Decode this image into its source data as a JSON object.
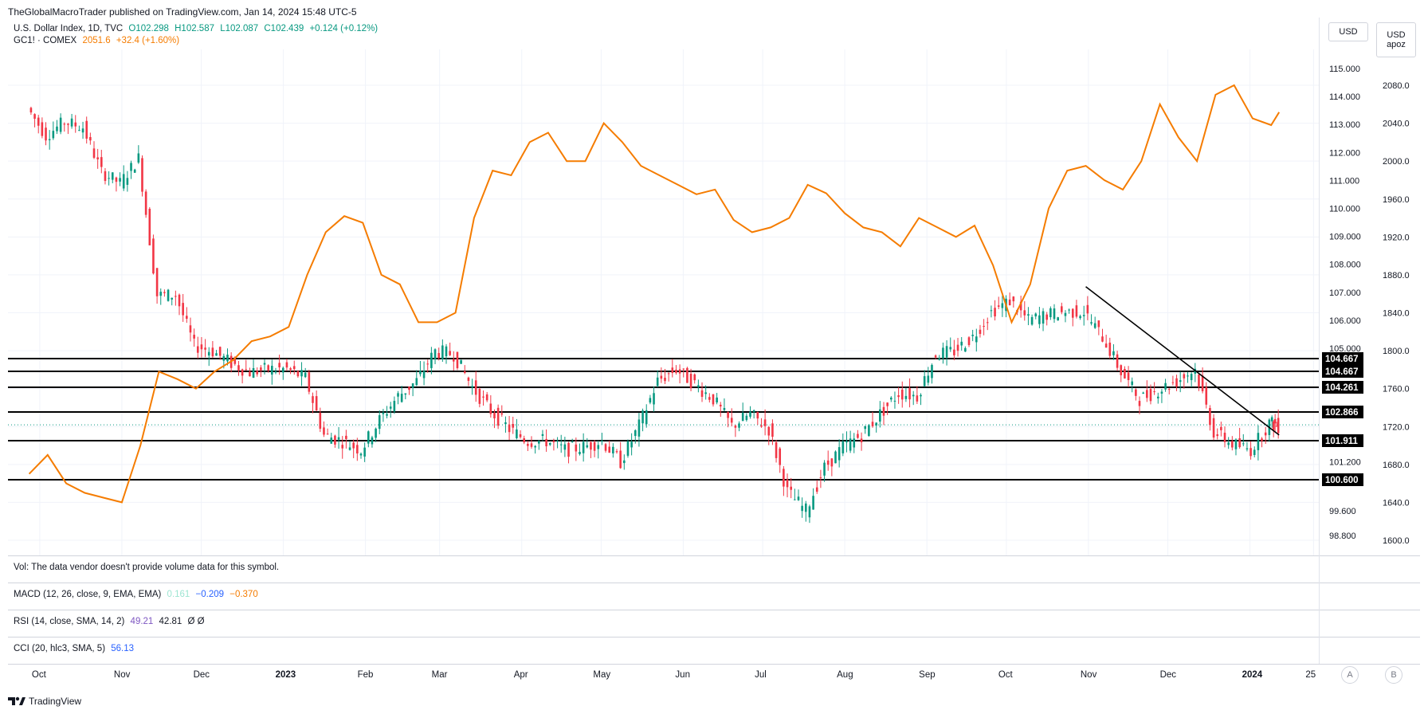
{
  "header": {
    "publisher_line": "TheGlobalMacroTrader published on TradingView.com, Jan 14, 2024 15:48 UTC-5"
  },
  "legend": {
    "symbol1": {
      "name": "U.S. Dollar Index, 1D, TVC",
      "o": "O102.298",
      "h": "H102.587",
      "l": "L102.087",
      "c": "C102.439",
      "chg": "+0.124 (+0.12%)",
      "color": "#089981"
    },
    "symbol2": {
      "name": "GC1! · COMEX",
      "price": "2051.6",
      "chg": "+32.4 (+1.60%)",
      "color": "#f57c00"
    }
  },
  "unit_buttons": {
    "left": "USD",
    "right_top": "USD",
    "right_bottom": "apoz"
  },
  "panes": {
    "volume": "Vol: The data vendor doesn't provide volume data for this symbol.",
    "macd": {
      "label": "MACD (12, 26, close, 9, EMA, EMA)",
      "v1": "0.161",
      "v2": "−0.209",
      "v3": "−0.370"
    },
    "rsi": {
      "label": "RSI (14, close, SMA, 14, 2)",
      "v1": "49.21",
      "v2": "42.81",
      "v3": "Ø Ø"
    },
    "cci": {
      "label": "CCI (20, hlc3, SMA, 5)",
      "v1": "56.13"
    }
  },
  "time_axis": [
    "Oct",
    "Nov",
    "Dec",
    "2023",
    "Feb",
    "Mar",
    "Apr",
    "May",
    "Jun",
    "Jul",
    "Aug",
    "Sep",
    "Oct",
    "Nov",
    "Dec",
    "2024",
    "25"
  ],
  "scale_buttons": {
    "a": "A",
    "b": "B"
  },
  "footer": {
    "brand": "TradingView"
  },
  "chart_data": {
    "type": "line",
    "colors": {
      "up": "#089981",
      "down": "#f23645",
      "gold": "#f57c00",
      "levels": "#000000"
    },
    "dxy_axis_ticks": [
      "115.000",
      "114.000",
      "113.000",
      "112.000",
      "111.000",
      "110.000",
      "109.000",
      "108.000",
      "107.000",
      "106.000",
      "105.000",
      "101.200",
      "99.600",
      "98.800"
    ],
    "gold_axis_ticks": [
      "2080.0",
      "2040.0",
      "2000.0",
      "1960.0",
      "1920.0",
      "1880.0",
      "1840.0",
      "1800.0",
      "1760.0",
      "1720.0",
      "1680.0",
      "1640.0",
      "1600.0"
    ],
    "horizontal_levels": [
      "104.667",
      "104.667",
      "104.261",
      "102.866",
      "101.911",
      "100.600"
    ],
    "trendline": {
      "from": [
        "2023-10-31",
        107.2
      ],
      "to": [
        "2024-01-12",
        102.1
      ]
    },
    "series": [
      {
        "name": "U.S. Dollar Index",
        "x": [
          "2022-09-27",
          "2022-10-04",
          "2022-10-11",
          "2022-10-18",
          "2022-10-25",
          "2022-11-01",
          "2022-11-08",
          "2022-11-15",
          "2022-11-22",
          "2022-11-29",
          "2022-12-06",
          "2022-12-13",
          "2022-12-20",
          "2022-12-27",
          "2023-01-03",
          "2023-01-10",
          "2023-01-17",
          "2023-01-24",
          "2023-01-31",
          "2023-02-07",
          "2023-02-14",
          "2023-02-21",
          "2023-02-28",
          "2023-03-07",
          "2023-03-14",
          "2023-03-21",
          "2023-03-28",
          "2023-04-04",
          "2023-04-11",
          "2023-04-18",
          "2023-04-25",
          "2023-05-02",
          "2023-05-09",
          "2023-05-16",
          "2023-05-23",
          "2023-05-30",
          "2023-06-06",
          "2023-06-13",
          "2023-06-20",
          "2023-06-27",
          "2023-07-04",
          "2023-07-11",
          "2023-07-18",
          "2023-07-25",
          "2023-08-01",
          "2023-08-08",
          "2023-08-15",
          "2023-08-22",
          "2023-08-29",
          "2023-09-05",
          "2023-09-12",
          "2023-09-19",
          "2023-09-26",
          "2023-10-03",
          "2023-10-10",
          "2023-10-17",
          "2023-10-24",
          "2023-10-31",
          "2023-11-07",
          "2023-11-14",
          "2023-11-21",
          "2023-11-28",
          "2023-12-05",
          "2023-12-12",
          "2023-12-19",
          "2023-12-26",
          "2024-01-02",
          "2024-01-09",
          "2024-01-12"
        ],
        "values": [
          113.6,
          112.6,
          113.1,
          112.9,
          111.3,
          110.9,
          111.8,
          106.9,
          106.9,
          105.1,
          104.9,
          104.5,
          104.2,
          104.3,
          104.3,
          104.0,
          102.1,
          101.9,
          101.6,
          102.6,
          103.4,
          103.9,
          104.9,
          104.8,
          103.7,
          102.9,
          102.3,
          101.9,
          101.9,
          101.6,
          101.7,
          101.9,
          101.2,
          102.4,
          103.9,
          104.3,
          103.8,
          103.3,
          102.4,
          102.8,
          102.3,
          100.2,
          99.6,
          101.0,
          101.7,
          102.1,
          102.8,
          103.5,
          103.4,
          104.8,
          104.9,
          105.4,
          106.3,
          106.7,
          106.0,
          106.2,
          106.3,
          106.3,
          105.4,
          104.2,
          103.3,
          103.6,
          103.9,
          104.3,
          102.2,
          101.8,
          101.6,
          102.5,
          102.4
        ]
      },
      {
        "name": "GC1! · COMEX",
        "x": [
          "2022-09-27",
          "2022-10-04",
          "2022-10-11",
          "2022-10-18",
          "2022-10-25",
          "2022-11-01",
          "2022-11-08",
          "2022-11-15",
          "2022-11-22",
          "2022-11-29",
          "2022-12-06",
          "2022-12-13",
          "2022-12-20",
          "2022-12-27",
          "2023-01-03",
          "2023-01-10",
          "2023-01-17",
          "2023-01-24",
          "2023-01-31",
          "2023-02-07",
          "2023-02-14",
          "2023-02-21",
          "2023-02-28",
          "2023-03-07",
          "2023-03-14",
          "2023-03-21",
          "2023-03-28",
          "2023-04-04",
          "2023-04-11",
          "2023-04-18",
          "2023-04-25",
          "2023-05-02",
          "2023-05-09",
          "2023-05-16",
          "2023-05-23",
          "2023-05-30",
          "2023-06-06",
          "2023-06-13",
          "2023-06-20",
          "2023-06-27",
          "2023-07-04",
          "2023-07-11",
          "2023-07-18",
          "2023-07-25",
          "2023-08-01",
          "2023-08-08",
          "2023-08-15",
          "2023-08-22",
          "2023-08-29",
          "2023-09-05",
          "2023-09-12",
          "2023-09-19",
          "2023-09-26",
          "2023-10-03",
          "2023-10-10",
          "2023-10-17",
          "2023-10-24",
          "2023-10-31",
          "2023-11-07",
          "2023-11-14",
          "2023-11-21",
          "2023-11-28",
          "2023-12-05",
          "2023-12-12",
          "2023-12-19",
          "2023-12-26",
          "2024-01-02",
          "2024-01-09",
          "2024-01-12"
        ],
        "values": [
          1670,
          1690,
          1660,
          1650,
          1645,
          1640,
          1700,
          1778,
          1770,
          1760,
          1778,
          1790,
          1810,
          1815,
          1825,
          1880,
          1925,
          1942,
          1935,
          1880,
          1870,
          1830,
          1830,
          1840,
          1940,
          1990,
          1985,
          2020,
          2030,
          2000,
          2000,
          2040,
          2020,
          1995,
          1985,
          1975,
          1965,
          1970,
          1938,
          1925,
          1930,
          1940,
          1975,
          1966,
          1945,
          1930,
          1925,
          1910,
          1940,
          1930,
          1920,
          1932,
          1890,
          1830,
          1870,
          1950,
          1990,
          1995,
          1980,
          1970,
          2000,
          2060,
          2025,
          2000,
          2070,
          2080,
          2045,
          2038,
          2051.6
        ]
      }
    ]
  }
}
